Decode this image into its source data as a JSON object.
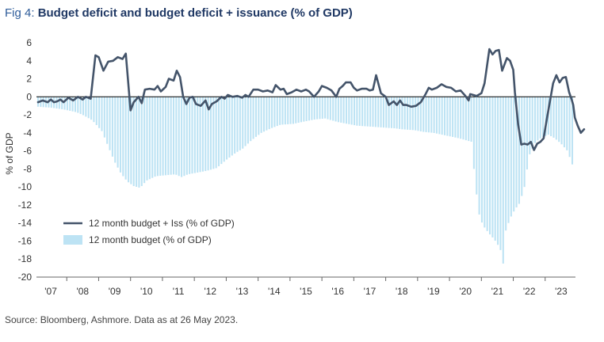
{
  "title": {
    "prefix": "Fig 4:",
    "text": "Budget deficit and budget deficit + issuance (% of GDP)"
  },
  "source": "Source: Bloomberg, Ashmore. Data as at 26 May 2023.",
  "colors": {
    "line": "#44546a",
    "bars": "#bde3f4",
    "zero": "#000000",
    "axis": "#666666"
  },
  "chart_data": {
    "type": "bar",
    "ylabel": "% of GDP",
    "ylim": [
      -20,
      6
    ],
    "yticks": [
      6,
      4,
      2,
      0,
      -2,
      -4,
      -6,
      -8,
      -10,
      -12,
      -14,
      -16,
      -18,
      -20
    ],
    "xlim": [
      2006.55,
      2023.45
    ],
    "xticks": [
      {
        "label": "'07",
        "x": 2007.0
      },
      {
        "label": "'08",
        "x": 2008.0
      },
      {
        "label": "'09",
        "x": 2009.0
      },
      {
        "label": "'10",
        "x": 2010.0
      },
      {
        "label": "'11",
        "x": 2011.0
      },
      {
        "label": "'12",
        "x": 2012.0
      },
      {
        "label": "'13",
        "x": 2013.0
      },
      {
        "label": "'14",
        "x": 2014.0
      },
      {
        "label": "'15",
        "x": 2015.0
      },
      {
        "label": "'16",
        "x": 2016.0
      },
      {
        "label": "'17",
        "x": 2017.0
      },
      {
        "label": "'18",
        "x": 2018.0
      },
      {
        "label": "'19",
        "x": 2019.0
      },
      {
        "label": "'20",
        "x": 2020.0
      },
      {
        "label": "'21",
        "x": 2021.0
      },
      {
        "label": "'22",
        "x": 2022.0
      },
      {
        "label": "'23",
        "x": 2023.0
      }
    ],
    "legend": [
      {
        "key": "line",
        "label": "12 month budget + Iss (% of GDP)"
      },
      {
        "key": "bars",
        "label": "12 month budget (% of GDP)"
      }
    ],
    "bars_anchors": [
      [
        2006.6,
        -1.1
      ],
      [
        2007.0,
        -1.2
      ],
      [
        2007.4,
        -1.4
      ],
      [
        2007.8,
        -1.7
      ],
      [
        2008.0,
        -2.0
      ],
      [
        2008.3,
        -2.6
      ],
      [
        2008.6,
        -3.8
      ],
      [
        2008.8,
        -5.5
      ],
      [
        2009.0,
        -7.2
      ],
      [
        2009.2,
        -8.5
      ],
      [
        2009.4,
        -9.4
      ],
      [
        2009.6,
        -9.9
      ],
      [
        2009.8,
        -10.1
      ],
      [
        2010.0,
        -9.3
      ],
      [
        2010.3,
        -8.8
      ],
      [
        2010.6,
        -8.7
      ],
      [
        2010.9,
        -8.6
      ],
      [
        2011.1,
        -8.9
      ],
      [
        2011.3,
        -8.6
      ],
      [
        2011.6,
        -8.4
      ],
      [
        2011.9,
        -8.2
      ],
      [
        2012.2,
        -7.9
      ],
      [
        2012.5,
        -7.0
      ],
      [
        2012.8,
        -6.2
      ],
      [
        2013.0,
        -5.8
      ],
      [
        2013.3,
        -4.8
      ],
      [
        2013.6,
        -4.0
      ],
      [
        2013.9,
        -3.5
      ],
      [
        2014.2,
        -3.1
      ],
      [
        2014.6,
        -3.0
      ],
      [
        2015.0,
        -2.7
      ],
      [
        2015.3,
        -2.5
      ],
      [
        2015.6,
        -2.4
      ],
      [
        2016.0,
        -2.8
      ],
      [
        2016.3,
        -3.0
      ],
      [
        2016.6,
        -3.2
      ],
      [
        2017.0,
        -3.3
      ],
      [
        2017.4,
        -3.4
      ],
      [
        2017.8,
        -3.5
      ],
      [
        2018.0,
        -3.6
      ],
      [
        2018.4,
        -3.7
      ],
      [
        2018.7,
        -3.9
      ],
      [
        2019.0,
        -4.0
      ],
      [
        2019.4,
        -4.3
      ],
      [
        2019.8,
        -4.6
      ],
      [
        2020.0,
        -4.8
      ],
      [
        2020.2,
        -5.0
      ],
      [
        2020.3,
        -9.5
      ],
      [
        2020.45,
        -13.5
      ],
      [
        2020.6,
        -14.5
      ],
      [
        2020.75,
        -15.2
      ],
      [
        2020.9,
        -15.8
      ],
      [
        2021.0,
        -16.3
      ],
      [
        2021.1,
        -17.0
      ],
      [
        2021.2,
        -18.8
      ],
      [
        2021.25,
        -15.0
      ],
      [
        2021.4,
        -13.5
      ],
      [
        2021.55,
        -12.5
      ],
      [
        2021.7,
        -11.8
      ],
      [
        2021.85,
        -10.0
      ],
      [
        2022.0,
        -6.5
      ],
      [
        2022.2,
        -5.0
      ],
      [
        2022.4,
        -4.5
      ],
      [
        2022.6,
        -4.2
      ],
      [
        2022.8,
        -4.6
      ],
      [
        2023.0,
        -5.2
      ],
      [
        2023.2,
        -6.0
      ],
      [
        2023.35,
        -7.5
      ],
      [
        2023.42,
        -6.5
      ]
    ],
    "line_anchors": [
      [
        2006.6,
        -0.6
      ],
      [
        2006.75,
        -0.4
      ],
      [
        2006.9,
        -0.6
      ],
      [
        2007.0,
        -0.3
      ],
      [
        2007.1,
        -0.6
      ],
      [
        2007.2,
        -0.5
      ],
      [
        2007.3,
        -0.3
      ],
      [
        2007.4,
        -0.6
      ],
      [
        2007.55,
        -0.1
      ],
      [
        2007.7,
        -0.4
      ],
      [
        2007.85,
        0.0
      ],
      [
        2008.0,
        -0.3
      ],
      [
        2008.1,
        0.0
      ],
      [
        2008.25,
        -0.2
      ],
      [
        2008.4,
        4.6
      ],
      [
        2008.5,
        4.4
      ],
      [
        2008.65,
        2.9
      ],
      [
        2008.8,
        3.9
      ],
      [
        2008.95,
        4.0
      ],
      [
        2009.1,
        4.4
      ],
      [
        2009.25,
        4.2
      ],
      [
        2009.35,
        4.8
      ],
      [
        2009.5,
        -1.5
      ],
      [
        2009.6,
        -0.6
      ],
      [
        2009.75,
        0.0
      ],
      [
        2009.85,
        -0.7
      ],
      [
        2009.95,
        0.8
      ],
      [
        2010.1,
        0.9
      ],
      [
        2010.25,
        0.8
      ],
      [
        2010.35,
        1.2
      ],
      [
        2010.45,
        0.6
      ],
      [
        2010.6,
        1.1
      ],
      [
        2010.7,
        2.0
      ],
      [
        2010.85,
        1.8
      ],
      [
        2010.95,
        2.9
      ],
      [
        2011.05,
        2.2
      ],
      [
        2011.15,
        0.0
      ],
      [
        2011.25,
        -0.8
      ],
      [
        2011.35,
        -0.1
      ],
      [
        2011.45,
        0.0
      ],
      [
        2011.55,
        -0.8
      ],
      [
        2011.7,
        -1.0
      ],
      [
        2011.85,
        -0.4
      ],
      [
        2011.95,
        -1.4
      ],
      [
        2012.05,
        -0.8
      ],
      [
        2012.2,
        -0.5
      ],
      [
        2012.35,
        0.0
      ],
      [
        2012.45,
        -0.2
      ],
      [
        2012.55,
        0.2
      ],
      [
        2012.7,
        0.0
      ],
      [
        2012.85,
        0.1
      ],
      [
        2013.0,
        -0.1
      ],
      [
        2013.1,
        0.2
      ],
      [
        2013.2,
        0.0
      ],
      [
        2013.35,
        0.8
      ],
      [
        2013.5,
        0.8
      ],
      [
        2013.65,
        0.6
      ],
      [
        2013.8,
        0.7
      ],
      [
        2013.95,
        0.5
      ],
      [
        2014.05,
        1.3
      ],
      [
        2014.2,
        0.8
      ],
      [
        2014.3,
        0.9
      ],
      [
        2014.4,
        0.3
      ],
      [
        2014.55,
        0.5
      ],
      [
        2014.7,
        0.8
      ],
      [
        2014.85,
        0.6
      ],
      [
        2015.0,
        0.8
      ],
      [
        2015.1,
        0.6
      ],
      [
        2015.25,
        0.0
      ],
      [
        2015.4,
        0.6
      ],
      [
        2015.5,
        1.2
      ],
      [
        2015.65,
        1.0
      ],
      [
        2015.8,
        0.7
      ],
      [
        2015.95,
        0.0
      ],
      [
        2016.05,
        0.9
      ],
      [
        2016.15,
        1.2
      ],
      [
        2016.25,
        1.6
      ],
      [
        2016.4,
        1.6
      ],
      [
        2016.5,
        1.0
      ],
      [
        2016.6,
        0.7
      ],
      [
        2016.75,
        0.9
      ],
      [
        2016.9,
        0.9
      ],
      [
        2017.0,
        0.7
      ],
      [
        2017.1,
        0.8
      ],
      [
        2017.2,
        2.4
      ],
      [
        2017.35,
        0.4
      ],
      [
        2017.5,
        0.0
      ],
      [
        2017.6,
        -0.9
      ],
      [
        2017.75,
        -0.5
      ],
      [
        2017.85,
        -0.9
      ],
      [
        2017.95,
        -0.4
      ],
      [
        2018.05,
        -0.9
      ],
      [
        2018.15,
        -0.9
      ],
      [
        2018.3,
        -1.1
      ],
      [
        2018.45,
        -1.0
      ],
      [
        2018.6,
        -0.6
      ],
      [
        2018.75,
        0.3
      ],
      [
        2018.85,
        1.0
      ],
      [
        2018.95,
        0.8
      ],
      [
        2019.1,
        1.0
      ],
      [
        2019.25,
        1.4
      ],
      [
        2019.4,
        1.1
      ],
      [
        2019.55,
        1.0
      ],
      [
        2019.7,
        0.6
      ],
      [
        2019.85,
        0.7
      ],
      [
        2020.0,
        0.1
      ],
      [
        2020.1,
        -0.4
      ],
      [
        2020.15,
        0.3
      ],
      [
        2020.25,
        0.2
      ],
      [
        2020.35,
        0.1
      ],
      [
        2020.5,
        0.4
      ],
      [
        2020.6,
        1.5
      ],
      [
        2020.75,
        5.3
      ],
      [
        2020.85,
        4.7
      ],
      [
        2020.95,
        5.1
      ],
      [
        2021.05,
        5.2
      ],
      [
        2021.15,
        2.9
      ],
      [
        2021.3,
        4.3
      ],
      [
        2021.4,
        4.0
      ],
      [
        2021.5,
        3.0
      ],
      [
        2021.55,
        0.5
      ],
      [
        2021.65,
        -3.0
      ],
      [
        2021.75,
        -5.3
      ],
      [
        2021.85,
        -5.2
      ],
      [
        2021.95,
        -5.3
      ],
      [
        2022.05,
        -5.0
      ],
      [
        2022.15,
        -5.9
      ],
      [
        2022.25,
        -5.2
      ],
      [
        2022.35,
        -5.0
      ],
      [
        2022.45,
        -4.6
      ],
      [
        2022.55,
        -2.5
      ],
      [
        2022.65,
        -0.5
      ],
      [
        2022.75,
        1.5
      ],
      [
        2022.85,
        2.4
      ],
      [
        2022.95,
        1.6
      ],
      [
        2023.05,
        2.1
      ],
      [
        2023.15,
        2.2
      ],
      [
        2023.25,
        0.5
      ],
      [
        2023.33,
        -0.3
      ],
      [
        2023.38,
        -0.9
      ],
      [
        2023.43,
        -2.3
      ],
      [
        2023.52,
        -3.2
      ],
      [
        2023.62,
        -4.0
      ],
      [
        2023.72,
        -3.6
      ]
    ]
  }
}
